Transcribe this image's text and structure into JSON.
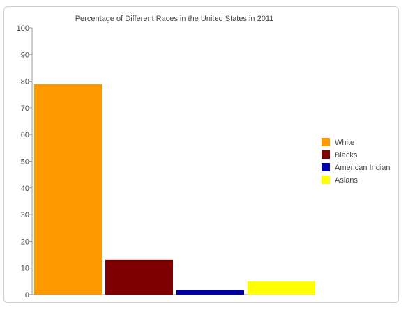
{
  "chart_data": {
    "type": "bar",
    "title": "Percentage of Different Races in the United States in 2011",
    "categories": [
      "White",
      "Blacks",
      "American Indian",
      "Asians"
    ],
    "values": [
      78.9,
      13.1,
      1.7,
      5.0
    ],
    "colors": [
      "#ff9900",
      "#7f0000",
      "#0000a8",
      "#ffff00"
    ],
    "xlabel": "",
    "ylabel": "",
    "ylim": [
      0,
      100
    ],
    "yticks": [
      "0",
      "10",
      "20",
      "30",
      "40",
      "50",
      "60",
      "70",
      "80",
      "90",
      "100"
    ],
    "legend_position": "right",
    "grid": false
  }
}
